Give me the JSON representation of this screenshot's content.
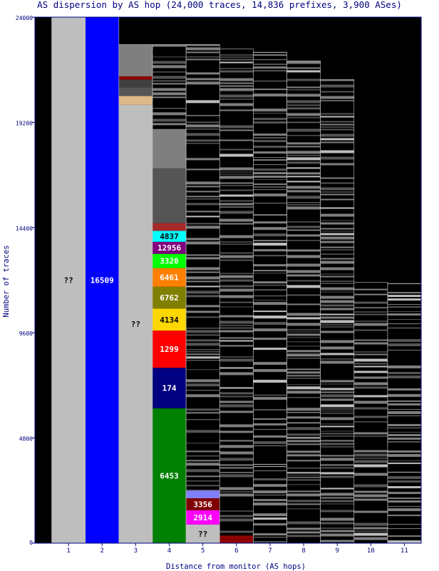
{
  "chart_data": {
    "type": "bar",
    "stacked": true,
    "title": "AS dispersion by AS hop (24,000 traces, 14,836 prefixes, 3,900 ASes)",
    "xlabel": "Distance from monitor (AS hops)",
    "ylabel": "Number of traces",
    "categories": [
      "1",
      "2",
      "3",
      "4",
      "5",
      "6",
      "7",
      "8",
      "9",
      "10",
      "11"
    ],
    "ylim": [
      0,
      24000
    ],
    "yticks": [
      "0",
      "4800",
      "9600",
      "14400",
      "19200",
      "24000"
    ],
    "grid": false,
    "legend": "none",
    "colors": {
      "background": "#000000",
      "gray": "#bebebe",
      "darkgray": "#7f7f7f",
      "blue": "#0000ff",
      "frame": "#000080"
    },
    "columns": [
      {
        "hop": 1,
        "total": 24000,
        "segments": [
          {
            "label": "??",
            "value": 24000,
            "color": "#bebebe"
          }
        ]
      },
      {
        "hop": 2,
        "total": 24000,
        "segments": [
          {
            "label": "16509",
            "value": 24000,
            "color": "#0000ff"
          }
        ]
      },
      {
        "hop": 3,
        "total": 22750,
        "segments": [
          {
            "label": "??",
            "value": 20000,
            "color": "#bebebe"
          },
          {
            "label": "",
            "value": 400,
            "color": "#deb887"
          },
          {
            "label": "",
            "value": 400,
            "color": "#555555"
          },
          {
            "label": "",
            "value": 350,
            "color": "#404040"
          },
          {
            "label": "",
            "value": 150,
            "color": "#8b0000"
          },
          {
            "label": "",
            "value": 1450,
            "color": "#7f7f7f"
          }
        ]
      },
      {
        "hop": 4,
        "total": 22750,
        "segments": [
          {
            "label": "6453",
            "value": 6150,
            "color": "#008000"
          },
          {
            "label": "174",
            "value": 1850,
            "color": "#000080"
          },
          {
            "label": "1299",
            "value": 1700,
            "color": "#ff0000"
          },
          {
            "label": "4134",
            "value": 1000,
            "color": "#ffd700"
          },
          {
            "label": "6762",
            "value": 1000,
            "color": "#808000"
          },
          {
            "label": "6461",
            "value": 850,
            "color": "#ff7f00"
          },
          {
            "label": "3320",
            "value": 650,
            "color": "#00ff00"
          },
          {
            "label": "12956",
            "value": 550,
            "color": "#800080"
          },
          {
            "label": "4837",
            "value": 500,
            "color": "#00ffff"
          },
          {
            "label": "",
            "value": 350,
            "color": "#a52a2a"
          },
          {
            "label": "",
            "value": 2500,
            "color": "#555555"
          },
          {
            "label": "",
            "value": 1800,
            "color": "#7f7f7f"
          }
        ]
      },
      {
        "hop": 5,
        "total": 22750,
        "segments": [
          {
            "label": "??",
            "value": 850,
            "color": "#bebebe"
          },
          {
            "label": "2914",
            "value": 650,
            "color": "#ff00ff"
          },
          {
            "label": "3356",
            "value": 550,
            "color": "#800000"
          },
          {
            "label": "",
            "value": 350,
            "color": "#8080ff"
          }
        ]
      },
      {
        "hop": 6,
        "total": 22550,
        "segments": [
          {
            "label": "",
            "value": 350,
            "color": "#8b0000"
          }
        ]
      },
      {
        "hop": 7,
        "total": 22400,
        "segments": []
      },
      {
        "hop": 8,
        "total": 22000,
        "segments": []
      },
      {
        "hop": 9,
        "total": 21150,
        "segments": []
      },
      {
        "hop": 10,
        "total": 11900,
        "segments": []
      },
      {
        "hop": 11,
        "total": 11850,
        "segments": []
      }
    ]
  }
}
